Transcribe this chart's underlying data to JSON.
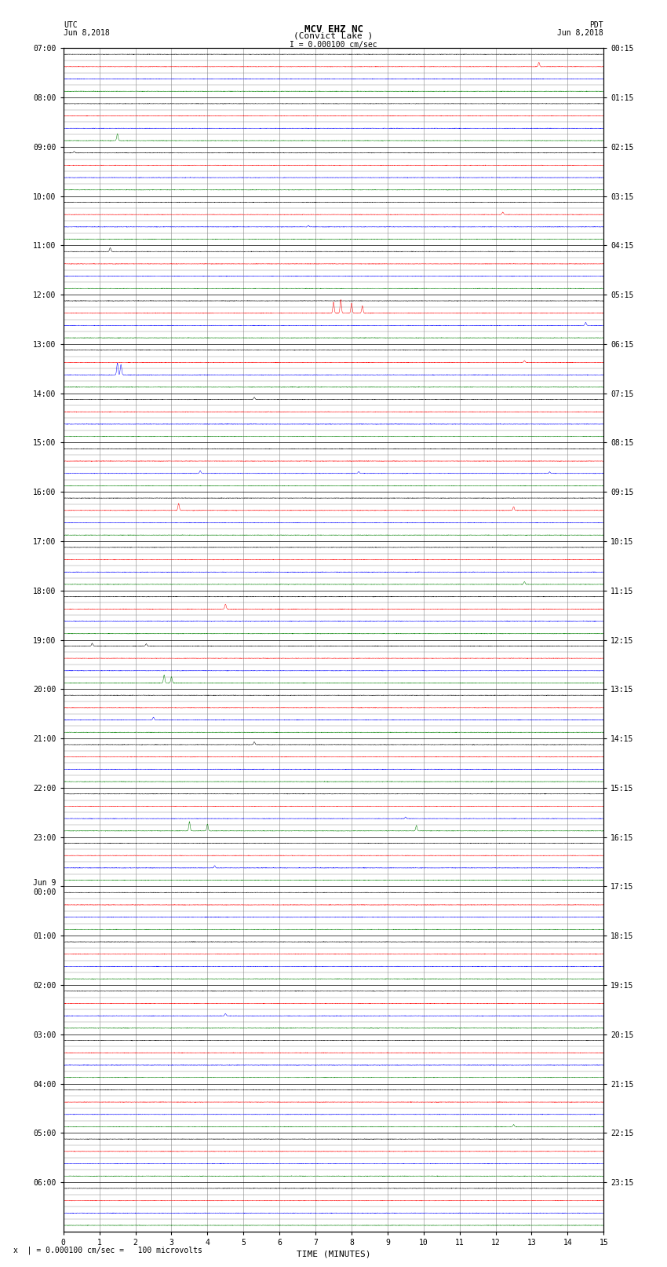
{
  "title_line1": "MCV EHZ NC",
  "title_line2": "(Convict Lake )",
  "title_scale": "I = 0.000100 cm/sec",
  "left_label_top": "UTC",
  "left_label_date": "Jun 8,2018",
  "right_label_top": "PDT",
  "right_label_date": "Jun 8,2018",
  "xlabel": "TIME (MINUTES)",
  "footnote": "x  | = 0.000100 cm/sec =   100 microvolts",
  "utc_times": [
    "07:00",
    "08:00",
    "09:00",
    "10:00",
    "11:00",
    "12:00",
    "13:00",
    "14:00",
    "15:00",
    "16:00",
    "17:00",
    "18:00",
    "19:00",
    "20:00",
    "21:00",
    "22:00",
    "23:00",
    "Jun 9\n00:00",
    "01:00",
    "02:00",
    "03:00",
    "04:00",
    "05:00",
    "06:00"
  ],
  "pdt_times": [
    "00:15",
    "01:15",
    "02:15",
    "03:15",
    "04:15",
    "05:15",
    "06:15",
    "07:15",
    "08:15",
    "09:15",
    "10:15",
    "11:15",
    "12:15",
    "13:15",
    "14:15",
    "15:15",
    "16:15",
    "17:15",
    "18:15",
    "19:15",
    "20:15",
    "21:15",
    "22:15",
    "23:15"
  ],
  "n_hours": 24,
  "traces_per_hour": 4,
  "n_minutes": 15,
  "bg_color": "#ffffff",
  "trace_colors": [
    "#000000",
    "#ff0000",
    "#0000ff",
    "#008000"
  ],
  "grid_major_color": "#000000",
  "grid_minor_color": "#aaaaaa",
  "label_color": "#000000",
  "tick_label_fontsize": 7,
  "title_fontsize": 9,
  "label_fontsize": 7,
  "noise_amplitude": 0.012,
  "spikes": [
    {
      "hour": 0,
      "sub": 1,
      "min": 13.2,
      "amp": 0.35,
      "color_idx": 1
    },
    {
      "hour": 1,
      "sub": 3,
      "min": 1.5,
      "amp": 0.55,
      "color_idx": 3
    },
    {
      "hour": 2,
      "sub": 0,
      "min": 0.3,
      "amp": 0.12,
      "color_idx": 0
    },
    {
      "hour": 3,
      "sub": 2,
      "min": 6.8,
      "amp": 0.1,
      "color_idx": 2
    },
    {
      "hour": 3,
      "sub": 1,
      "min": 12.2,
      "amp": 0.2,
      "color_idx": 1
    },
    {
      "hour": 4,
      "sub": 0,
      "min": 1.3,
      "amp": 0.3,
      "color_idx": 0
    },
    {
      "hour": 5,
      "sub": 1,
      "min": 7.5,
      "amp": 0.9,
      "color_idx": 1
    },
    {
      "hour": 5,
      "sub": 1,
      "min": 7.7,
      "amp": 1.1,
      "color_idx": 1
    },
    {
      "hour": 5,
      "sub": 1,
      "min": 8.0,
      "amp": 0.8,
      "color_idx": 1
    },
    {
      "hour": 5,
      "sub": 1,
      "min": 8.3,
      "amp": 0.6,
      "color_idx": 1
    },
    {
      "hour": 5,
      "sub": 2,
      "min": 14.5,
      "amp": 0.25,
      "color_idx": 2
    },
    {
      "hour": 6,
      "sub": 2,
      "min": 1.5,
      "amp": 0.95,
      "color_idx": 2
    },
    {
      "hour": 6,
      "sub": 2,
      "min": 1.6,
      "amp": 0.85,
      "color_idx": 2
    },
    {
      "hour": 6,
      "sub": 1,
      "min": 12.8,
      "amp": 0.15,
      "color_idx": 1
    },
    {
      "hour": 7,
      "sub": 0,
      "min": 5.3,
      "amp": 0.18,
      "color_idx": 0
    },
    {
      "hour": 8,
      "sub": 2,
      "min": 3.8,
      "amp": 0.22,
      "color_idx": 2
    },
    {
      "hour": 8,
      "sub": 2,
      "min": 8.2,
      "amp": 0.15,
      "color_idx": 2
    },
    {
      "hour": 8,
      "sub": 2,
      "min": 13.5,
      "amp": 0.12,
      "color_idx": 2
    },
    {
      "hour": 9,
      "sub": 1,
      "min": 3.2,
      "amp": 0.55,
      "color_idx": 1
    },
    {
      "hour": 9,
      "sub": 1,
      "min": 12.5,
      "amp": 0.3,
      "color_idx": 1
    },
    {
      "hour": 10,
      "sub": 3,
      "min": 12.8,
      "amp": 0.22,
      "color_idx": 3
    },
    {
      "hour": 11,
      "sub": 1,
      "min": 4.5,
      "amp": 0.4,
      "color_idx": 1
    },
    {
      "hour": 12,
      "sub": 0,
      "min": 0.8,
      "amp": 0.22,
      "color_idx": 0
    },
    {
      "hour": 12,
      "sub": 0,
      "min": 2.3,
      "amp": 0.18,
      "color_idx": 0
    },
    {
      "hour": 12,
      "sub": 3,
      "min": 2.8,
      "amp": 0.65,
      "color_idx": 3
    },
    {
      "hour": 12,
      "sub": 3,
      "min": 3.0,
      "amp": 0.5,
      "color_idx": 3
    },
    {
      "hour": 13,
      "sub": 2,
      "min": 2.5,
      "amp": 0.22,
      "color_idx": 2
    },
    {
      "hour": 14,
      "sub": 0,
      "min": 5.3,
      "amp": 0.22,
      "color_idx": 0
    },
    {
      "hour": 15,
      "sub": 3,
      "min": 3.5,
      "amp": 0.75,
      "color_idx": 3
    },
    {
      "hour": 15,
      "sub": 3,
      "min": 4.0,
      "amp": 0.55,
      "color_idx": 3
    },
    {
      "hour": 15,
      "sub": 3,
      "min": 9.8,
      "amp": 0.45,
      "color_idx": 3
    },
    {
      "hour": 15,
      "sub": 2,
      "min": 9.5,
      "amp": 0.12,
      "color_idx": 2
    },
    {
      "hour": 16,
      "sub": 2,
      "min": 4.2,
      "amp": 0.18,
      "color_idx": 2
    },
    {
      "hour": 19,
      "sub": 2,
      "min": 4.5,
      "amp": 0.18,
      "color_idx": 2
    },
    {
      "hour": 21,
      "sub": 3,
      "min": 12.5,
      "amp": 0.18,
      "color_idx": 3
    }
  ]
}
